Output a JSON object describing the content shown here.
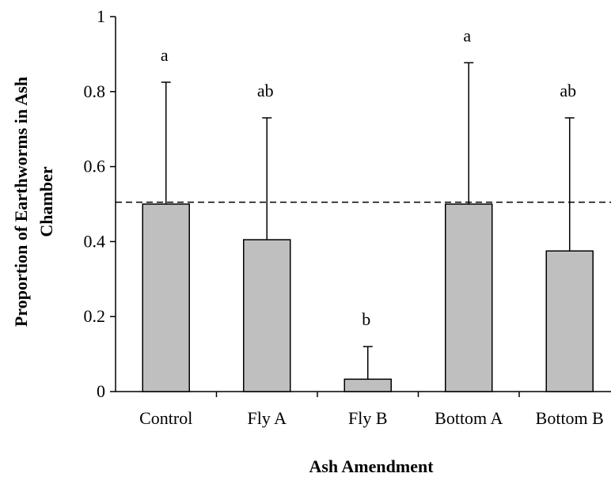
{
  "chart_data": {
    "type": "bar",
    "title": "",
    "xlabel": "Ash Amendment",
    "ylabel_lines": [
      "Proportion of Earthworms in Ash",
      "Chamber"
    ],
    "categories": [
      "Control",
      "Fly A",
      "Fly B",
      "Bottom A",
      "Bottom B"
    ],
    "values": [
      0.5,
      0.405,
      0.033,
      0.5,
      0.375
    ],
    "error_upper": [
      0.825,
      0.73,
      0.12,
      0.877,
      0.73
    ],
    "letters": [
      "a",
      "ab",
      "b",
      "a",
      "ab"
    ],
    "reference_line": 0.505,
    "ylim": [
      0,
      1
    ],
    "yticks": [
      "0",
      "0.2",
      "0.4",
      "0.6",
      "0.8",
      "1"
    ],
    "grid": false,
    "bar_color": "#bfbfbf",
    "bar_edge_color": "#000000"
  }
}
